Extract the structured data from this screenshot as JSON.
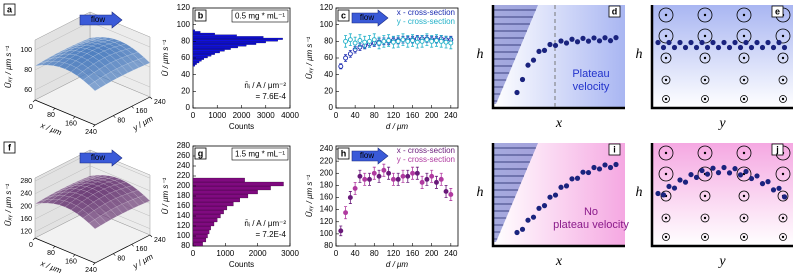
{
  "chart_data": [
    {
      "type": "surface3d",
      "label": "a",
      "annotation": "flow",
      "zlabel": "Ūₓᵧ / μm s⁻¹",
      "xlabel": "x / μm",
      "ylabel": "y / μm",
      "color": "#4f7fc0",
      "xlim": [
        0,
        240
      ],
      "xticks": [
        0,
        80,
        160,
        240
      ],
      "ylim": [
        0,
        240
      ],
      "yticks": [
        80,
        160,
        240
      ],
      "zlim": [
        50,
        110
      ],
      "zticks": [
        60,
        80,
        100
      ]
    },
    {
      "type": "histogram",
      "label": "b",
      "annotation": "0.5 mg * mL⁻¹",
      "note": [
        "n̄ᵢ / A / μm⁻²",
        "= 7.6E-4"
      ],
      "xlabel": "Counts",
      "ylabel": "Ū / μm s⁻¹",
      "color": "#1010e0",
      "bins": [
        50,
        52,
        54,
        56,
        58,
        60,
        62,
        64,
        66,
        68,
        70,
        72,
        74,
        76,
        78,
        80,
        82,
        84,
        86,
        88,
        90,
        92,
        94
      ],
      "counts": [
        80,
        150,
        250,
        350,
        450,
        600,
        750,
        900,
        1100,
        1300,
        1550,
        1850,
        2200,
        2600,
        3000,
        3500,
        3700,
        2900,
        1800,
        900,
        300,
        80
      ],
      "xlim": [
        0,
        4000
      ],
      "xticks": [
        0,
        1000,
        2000,
        3000,
        4000
      ],
      "ylim": [
        0,
        120
      ],
      "yticks": [
        0,
        20,
        40,
        60,
        80,
        100,
        120
      ]
    },
    {
      "type": "errorbar",
      "label": "c",
      "annotation": "flow",
      "xlabel": "d / μm",
      "ylabel": "Ūₓᵧ / μm s⁻¹",
      "filled": false,
      "xlim": [
        0,
        255
      ],
      "xticks": [
        0,
        40,
        80,
        120,
        160,
        200,
        240
      ],
      "ylim": [
        0,
        120
      ],
      "yticks": [
        0,
        20,
        40,
        60,
        80,
        100,
        120
      ],
      "series": [
        {
          "name": "x - cross-section",
          "color": "#1a2ab0",
          "x": [
            10,
            20,
            30,
            40,
            50,
            60,
            70,
            80,
            90,
            100,
            110,
            120,
            130,
            140,
            150,
            160,
            170,
            180,
            190,
            200,
            210,
            220,
            230,
            240
          ],
          "values": [
            50,
            60,
            65,
            70,
            73,
            75,
            77,
            78,
            79,
            80,
            80,
            81,
            81,
            82,
            82,
            82,
            83,
            83,
            83,
            82,
            82,
            83,
            82,
            82
          ],
          "errors": [
            3,
            4,
            4,
            4,
            4,
            4,
            4,
            4,
            4,
            4,
            4,
            4,
            4,
            4,
            4,
            4,
            4,
            4,
            4,
            4,
            4,
            4,
            4,
            4
          ]
        },
        {
          "name": "y - cross-section",
          "color": "#20b0c8",
          "x": [
            20,
            30,
            40,
            50,
            60,
            70,
            80,
            90,
            100,
            110,
            120,
            130,
            140,
            150,
            160,
            170,
            180,
            190,
            200,
            210,
            220,
            230,
            240
          ],
          "values": [
            80,
            82,
            78,
            81,
            79,
            80,
            82,
            78,
            80,
            81,
            79,
            80,
            82,
            80,
            81,
            79,
            80,
            82,
            80,
            81,
            80,
            79,
            78
          ],
          "errors": [
            7,
            7,
            7,
            7,
            7,
            7,
            7,
            7,
            7,
            7,
            7,
            7,
            7,
            7,
            7,
            7,
            7,
            7,
            7,
            7,
            7,
            7,
            7
          ]
        }
      ]
    },
    {
      "type": "profile",
      "label": "d",
      "ylabel": "h",
      "xlabel": "x",
      "text": [
        "Plateau",
        "velocity"
      ],
      "plateau": true,
      "color": "#a9b6f2",
      "text_color": "#2233cc",
      "marker_color": "#1a237e"
    },
    {
      "type": "cross",
      "label": "e",
      "ylabel": "h",
      "xlabel": "y",
      "plateau": true,
      "color": "#a9b6f2",
      "marker_color": "#1a237e"
    },
    {
      "type": "surface3d",
      "label": "f",
      "annotation": "flow",
      "zlabel": "Ūₓᵧ / μm s⁻¹",
      "xlabel": "x / μm",
      "ylabel": "y / μm",
      "color": "#6e3f78",
      "xlim": [
        0,
        240
      ],
      "xticks": [
        0,
        80,
        160,
        240
      ],
      "ylim": [
        0,
        240
      ],
      "yticks": [
        80,
        160,
        240
      ],
      "zlim": [
        100,
        290
      ],
      "zticks": [
        120,
        160,
        200,
        240,
        280
      ]
    },
    {
      "type": "histogram",
      "label": "g",
      "annotation": "1.5 mg * mL⁻¹",
      "note": [
        "n̄ᵢ / A / μm⁻²",
        "= 7.2E-4"
      ],
      "xlabel": "Counts",
      "ylabel": "Ū / μm s⁻¹",
      "color": "#800a80",
      "bins": [
        80,
        88,
        96,
        104,
        112,
        120,
        128,
        136,
        144,
        152,
        160,
        168,
        176,
        184,
        192,
        200,
        208,
        216
      ],
      "counts": [
        300,
        400,
        450,
        500,
        550,
        650,
        750,
        850,
        950,
        1050,
        1250,
        1450,
        1700,
        2000,
        2400,
        2800,
        1600
      ],
      "xlim": [
        0,
        3000
      ],
      "xticks": [
        0,
        1000,
        2000,
        3000
      ],
      "ylim": [
        80,
        280
      ],
      "yticks": [
        80,
        100,
        120,
        140,
        160,
        180,
        200,
        220,
        240,
        260,
        280
      ]
    },
    {
      "type": "errorbar",
      "label": "h",
      "annotation": "flow",
      "xlabel": "d / μm",
      "ylabel": "Ūₓᵧ / μm s⁻¹",
      "filled": true,
      "xlim": [
        0,
        255
      ],
      "xticks": [
        0,
        40,
        80,
        120,
        160,
        200,
        240
      ],
      "ylim": [
        80,
        245
      ],
      "yticks": [
        80,
        100,
        120,
        140,
        160,
        180,
        200,
        220,
        240
      ],
      "series": [
        {
          "name": "x - cross-section",
          "color": "#6a1a7a",
          "x": [
            10,
            30,
            50,
            70,
            90,
            110,
            130,
            150,
            170,
            190,
            210,
            230
          ],
          "values": [
            105,
            160,
            195,
            190,
            195,
            200,
            190,
            195,
            200,
            190,
            185,
            170
          ],
          "errors": [
            8,
            10,
            10,
            10,
            10,
            10,
            10,
            10,
            10,
            10,
            10,
            10
          ]
        },
        {
          "name": "y - cross-section",
          "color": "#b03aa0",
          "x": [
            20,
            40,
            60,
            80,
            100,
            120,
            140,
            160,
            180,
            200,
            220,
            240
          ],
          "values": [
            135,
            175,
            190,
            200,
            205,
            190,
            195,
            200,
            185,
            195,
            190,
            165
          ],
          "errors": [
            10,
            10,
            10,
            10,
            10,
            10,
            10,
            10,
            10,
            10,
            10,
            10
          ]
        }
      ]
    },
    {
      "type": "profile",
      "label": "i",
      "ylabel": "h",
      "xlabel": "x",
      "text": [
        "No",
        "plateau velocity"
      ],
      "plateau": false,
      "color": "#f5a8e2",
      "text_color": "#8a1a8a",
      "marker_color": "#1a237e"
    },
    {
      "type": "cross",
      "label": "j",
      "ylabel": "h",
      "xlabel": "y",
      "plateau": false,
      "color": "#f5a8e2",
      "marker_color": "#1a237e"
    }
  ]
}
